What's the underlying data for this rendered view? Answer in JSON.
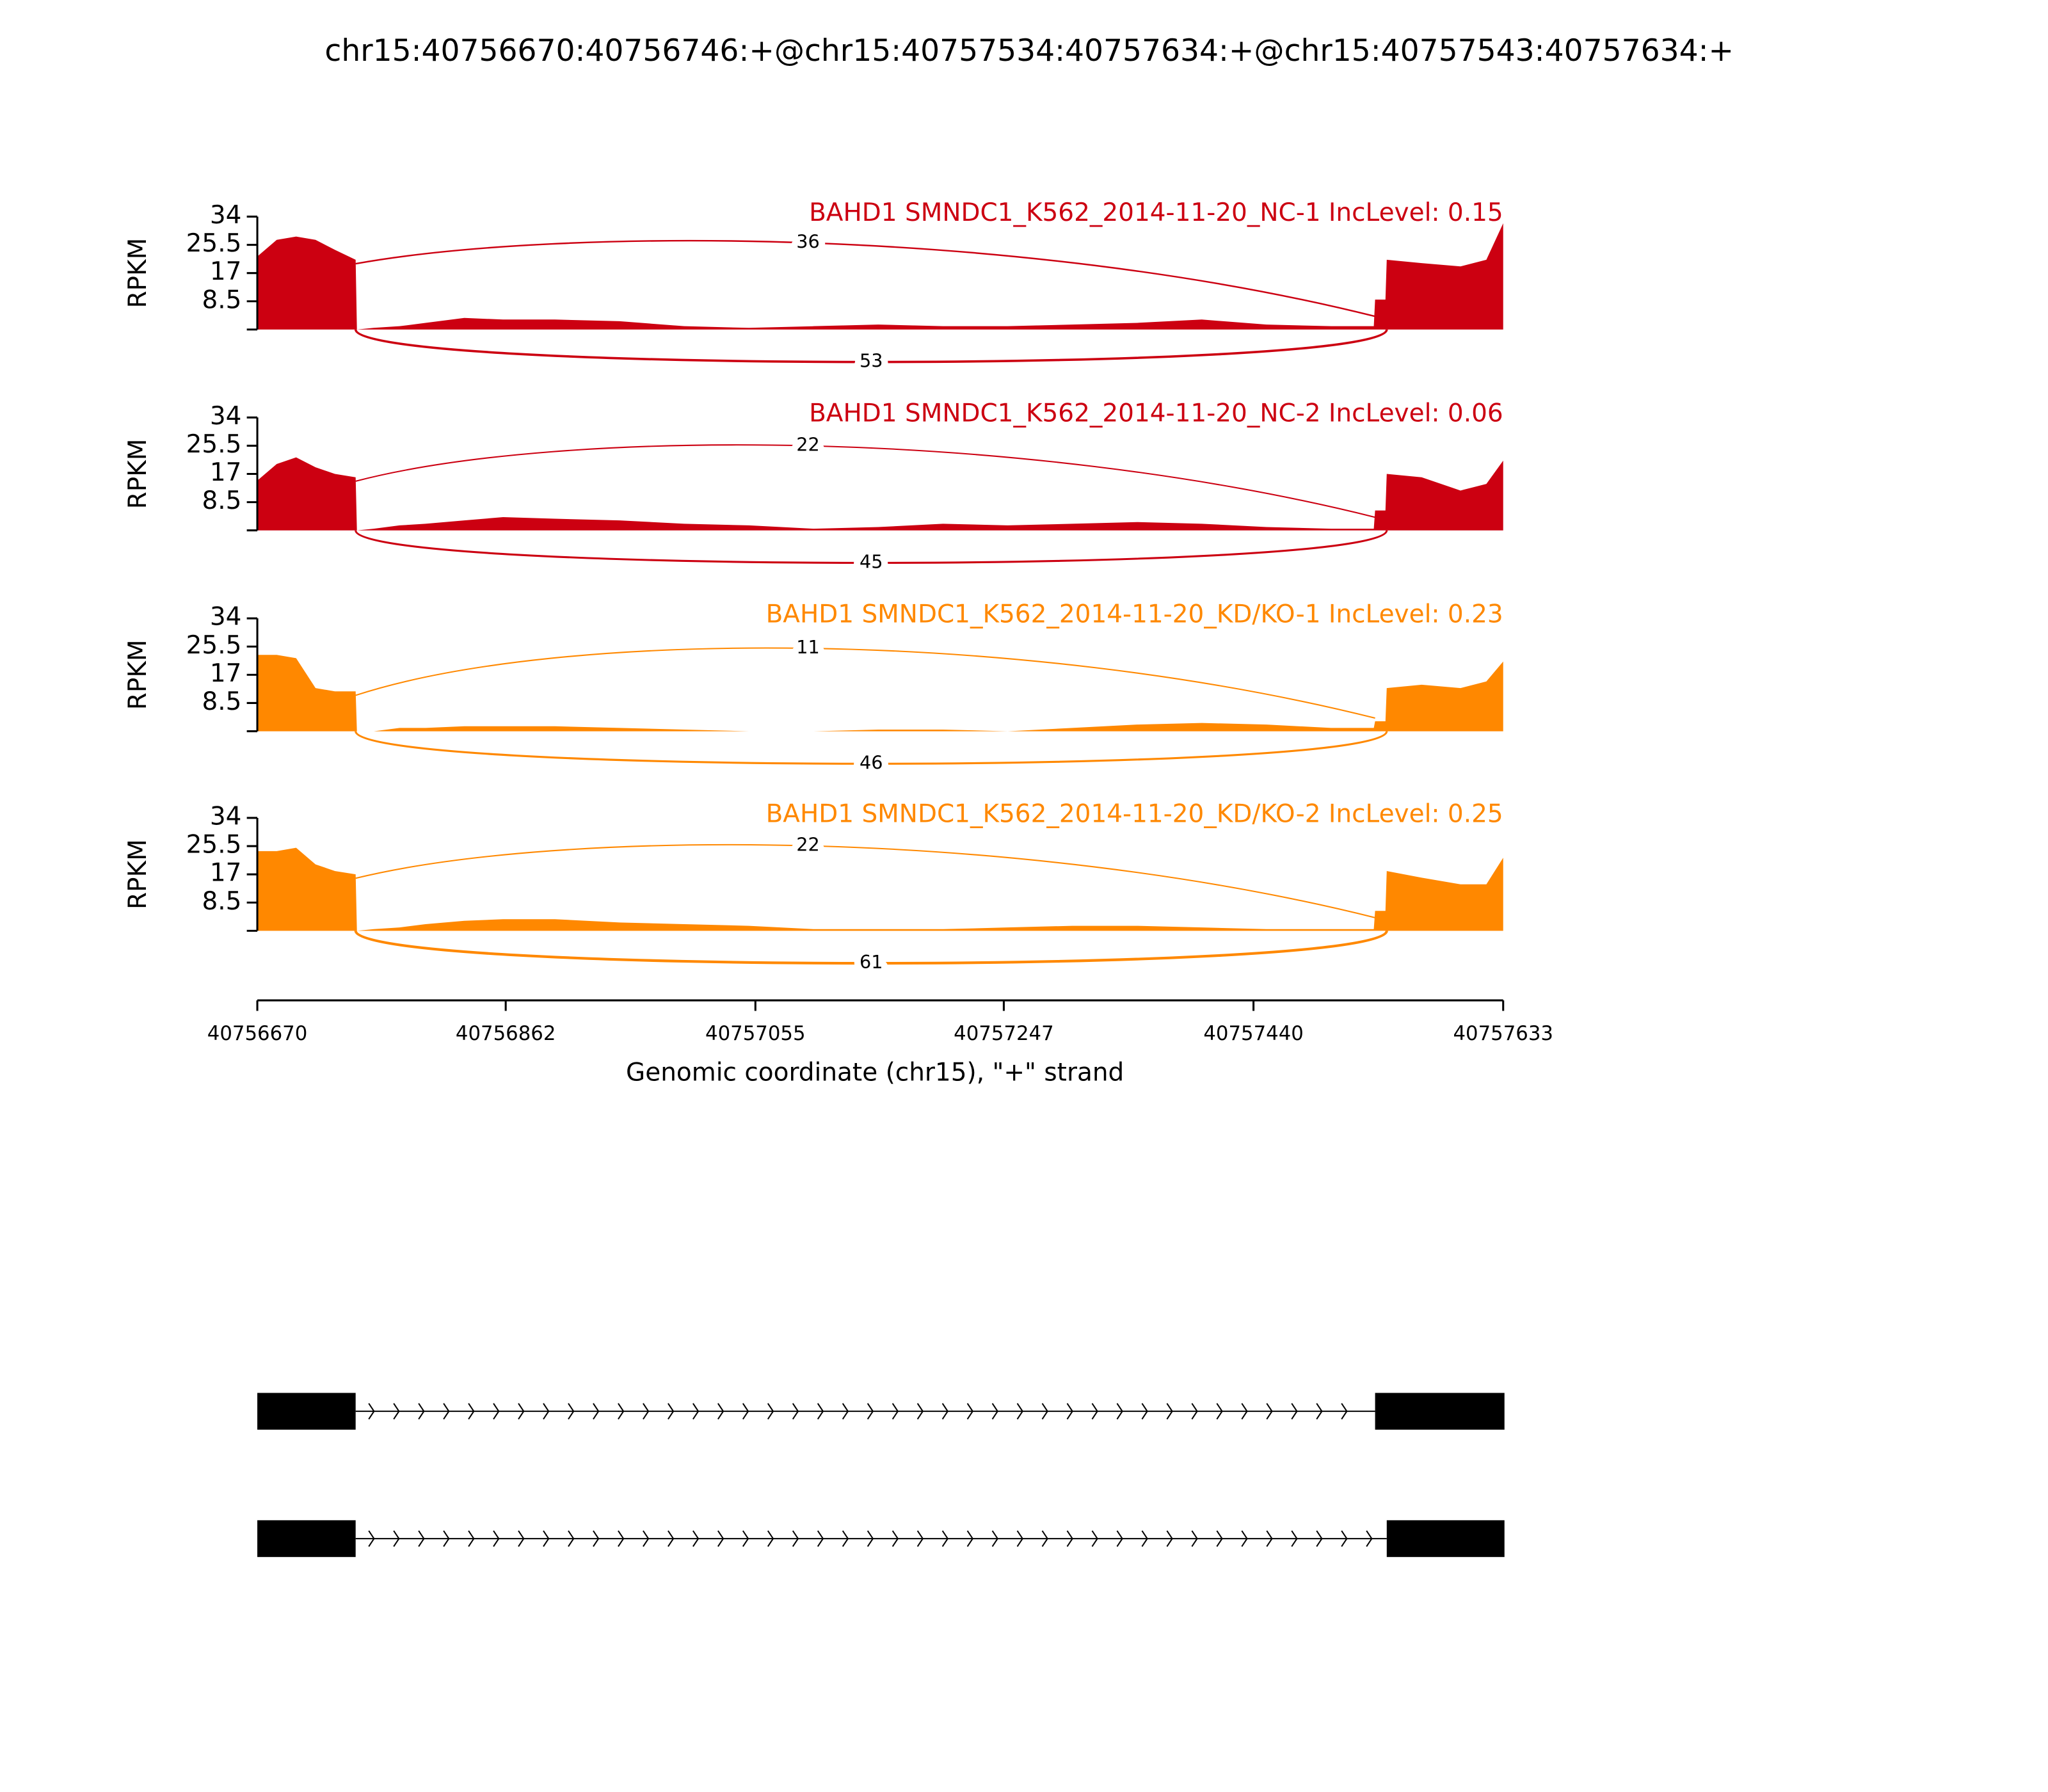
{
  "title": "chr15:40756670:40756746:+@chr15:40757534:40757634:+@chr15:40757543:40757634:+",
  "chart_data": [
    {
      "type": "area",
      "title": "BAHD1 SMNDC1_K562_2014-11-20_NC-1 IncLevel: 0.15",
      "ylabel": "RPKM",
      "color": "#cc0011",
      "xlim": [
        40756670,
        40757633
      ],
      "ylim": [
        0,
        34
      ],
      "yticks": [
        8.5,
        17,
        25.5,
        34
      ],
      "x": [
        40756670,
        40756685,
        40756700,
        40756715,
        40756730,
        40756746,
        40756747,
        40756760,
        40756780,
        40756800,
        40756830,
        40756860,
        40756900,
        40756950,
        40757000,
        40757050,
        40757100,
        40757150,
        40757200,
        40757250,
        40757300,
        40757350,
        40757400,
        40757450,
        40757500,
        40757533,
        40757534,
        40757542,
        40757543,
        40757570,
        40757600,
        40757620,
        40757633
      ],
      "values": [
        22,
        27,
        28,
        27,
        24,
        21,
        0,
        0.5,
        1,
        2,
        3.5,
        3,
        3,
        2.5,
        1,
        0.5,
        1,
        1.5,
        1,
        1,
        1.5,
        2,
        3,
        1.5,
        1,
        1,
        9,
        9,
        21,
        20,
        19,
        21,
        32
      ],
      "junctions": [
        {
          "start": 40756746,
          "end": 40757534,
          "count": 36
        },
        {
          "start": 40756746,
          "end": 40757543,
          "count": 53
        }
      ]
    },
    {
      "type": "area",
      "title": "BAHD1 SMNDC1_K562_2014-11-20_NC-2 IncLevel: 0.06",
      "ylabel": "RPKM",
      "color": "#cc0011",
      "xlim": [
        40756670,
        40757633
      ],
      "ylim": [
        0,
        34
      ],
      "yticks": [
        8.5,
        17,
        25.5,
        34
      ],
      "x": [
        40756670,
        40756685,
        40756700,
        40756715,
        40756730,
        40756746,
        40756747,
        40756760,
        40756780,
        40756800,
        40756830,
        40756860,
        40756900,
        40756950,
        40757000,
        40757050,
        40757100,
        40757150,
        40757200,
        40757250,
        40757300,
        40757350,
        40757400,
        40757450,
        40757500,
        40757533,
        40757534,
        40757542,
        40757543,
        40757570,
        40757600,
        40757620,
        40757633
      ],
      "values": [
        15,
        20,
        22,
        19,
        17,
        16,
        0,
        0.5,
        1.5,
        2,
        3,
        4,
        3.5,
        3,
        2,
        1.5,
        0.5,
        1,
        2,
        1.5,
        2,
        2.5,
        2,
        1,
        0.5,
        0.5,
        6,
        6,
        17,
        16,
        12,
        14,
        21
      ],
      "junctions": [
        {
          "start": 40756746,
          "end": 40757534,
          "count": 22
        },
        {
          "start": 40756746,
          "end": 40757543,
          "count": 45
        }
      ]
    },
    {
      "type": "area",
      "title": "BAHD1 SMNDC1_K562_2014-11-20_KD/KO-1 IncLevel: 0.23",
      "ylabel": "RPKM",
      "color": "#ff8800",
      "xlim": [
        40756670,
        40757633
      ],
      "ylim": [
        0,
        34
      ],
      "yticks": [
        8.5,
        17,
        25.5,
        34
      ],
      "x": [
        40756670,
        40756685,
        40756700,
        40756715,
        40756730,
        40756746,
        40756747,
        40756760,
        40756780,
        40756800,
        40756830,
        40756860,
        40756900,
        40756950,
        40757000,
        40757050,
        40757100,
        40757150,
        40757200,
        40757250,
        40757300,
        40757350,
        40757400,
        40757450,
        40757500,
        40757533,
        40757534,
        40757542,
        40757543,
        40757570,
        40757600,
        40757620,
        40757633
      ],
      "values": [
        23,
        23,
        22,
        13,
        12,
        12,
        0,
        0,
        1,
        1,
        1.5,
        1.5,
        1.5,
        1,
        0.5,
        0,
        0,
        0.5,
        0.5,
        0,
        1,
        2,
        2.5,
        2,
        1,
        1,
        3,
        3,
        13,
        14,
        13,
        15,
        21
      ],
      "junctions": [
        {
          "start": 40756746,
          "end": 40757534,
          "count": 11
        },
        {
          "start": 40756746,
          "end": 40757543,
          "count": 46
        }
      ]
    },
    {
      "type": "area",
      "title": "BAHD1 SMNDC1_K562_2014-11-20_KD/KO-2 IncLevel: 0.25",
      "ylabel": "RPKM",
      "color": "#ff8800",
      "xlim": [
        40756670,
        40757633
      ],
      "ylim": [
        0,
        34
      ],
      "yticks": [
        8.5,
        17,
        25.5,
        34
      ],
      "x": [
        40756670,
        40756685,
        40756700,
        40756715,
        40756730,
        40756746,
        40756747,
        40756760,
        40756780,
        40756800,
        40756830,
        40756860,
        40756900,
        40756950,
        40757000,
        40757050,
        40757100,
        40757150,
        40757200,
        40757250,
        40757300,
        40757350,
        40757400,
        40757450,
        40757500,
        40757533,
        40757534,
        40757542,
        40757543,
        40757570,
        40757600,
        40757620,
        40757633
      ],
      "values": [
        24,
        24,
        25,
        20,
        18,
        17,
        0,
        0.5,
        1,
        2,
        3,
        3.5,
        3.5,
        2.5,
        2,
        1.5,
        0.5,
        0.5,
        0.5,
        1,
        1.5,
        1.5,
        1,
        0.5,
        0.5,
        0.5,
        6,
        6,
        18,
        16,
        14,
        14,
        22
      ],
      "junctions": [
        {
          "start": 40756746,
          "end": 40757534,
          "count": 22
        },
        {
          "start": 40756746,
          "end": 40757543,
          "count": 61
        }
      ],
      "xticks": [
        40756670,
        40756862,
        40757055,
        40757247,
        40757440,
        40757633
      ],
      "xlabel": "Genomic coordinate (chr15), \"+\" strand"
    }
  ],
  "transcripts": [
    {
      "exons": [
        [
          40756670,
          40756746
        ],
        [
          40757534,
          40757634
        ]
      ]
    },
    {
      "exons": [
        [
          40756670,
          40756746
        ],
        [
          40757543,
          40757634
        ]
      ]
    }
  ]
}
